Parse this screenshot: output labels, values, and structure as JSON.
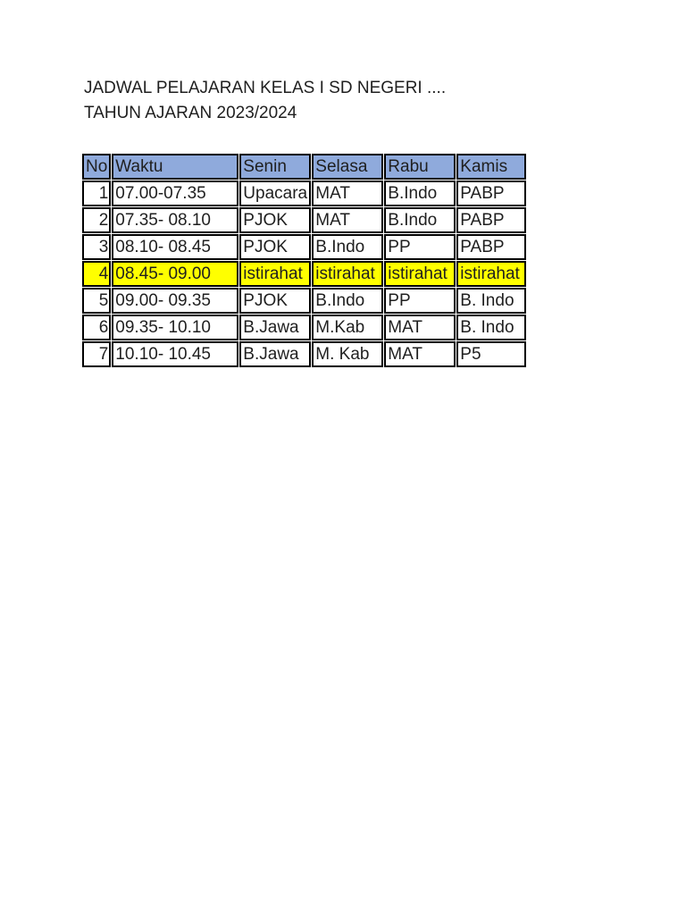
{
  "document": {
    "title_line1": "JADWAL PELAJARAN KELAS I SD NEGERI ....",
    "title_line2": "TAHUN AJARAN 2023/2024"
  },
  "colors": {
    "page_background": "#FFFFFF",
    "header_fill": "#8FAADC",
    "highlight_fill": "#FFFF00",
    "grid_border": "#000000",
    "text": "#1F1F1F"
  },
  "table": {
    "headers": [
      "No",
      "Waktu",
      "Senin",
      "Selasa",
      "Rabu",
      "Kamis"
    ],
    "rows": [
      [
        "1",
        "07.00-07.35",
        "Upacara",
        "MAT",
        "B.Indo",
        "PABP"
      ],
      [
        "2",
        "07.35- 08.10",
        "PJOK",
        "MAT",
        "B.Indo",
        "PABP"
      ],
      [
        "3",
        "08.10- 08.45",
        "PJOK",
        "B.Indo",
        "PP",
        "PABP"
      ],
      [
        "4",
        "08.45- 09.00",
        "istirahat",
        "istirahat",
        "istirahat",
        "istirahat"
      ],
      [
        "5",
        "09.00- 09.35",
        "PJOK",
        "B.Indo",
        "PP",
        "B. Indo"
      ],
      [
        "6",
        "09.35- 10.10",
        "B.Jawa",
        "M.Kab",
        "MAT",
        "B. Indo"
      ],
      [
        "7",
        "10.10- 10.45",
        "B.Jawa",
        "M. Kab",
        "MAT",
        "P5"
      ]
    ],
    "highlight_row_number": "4"
  }
}
